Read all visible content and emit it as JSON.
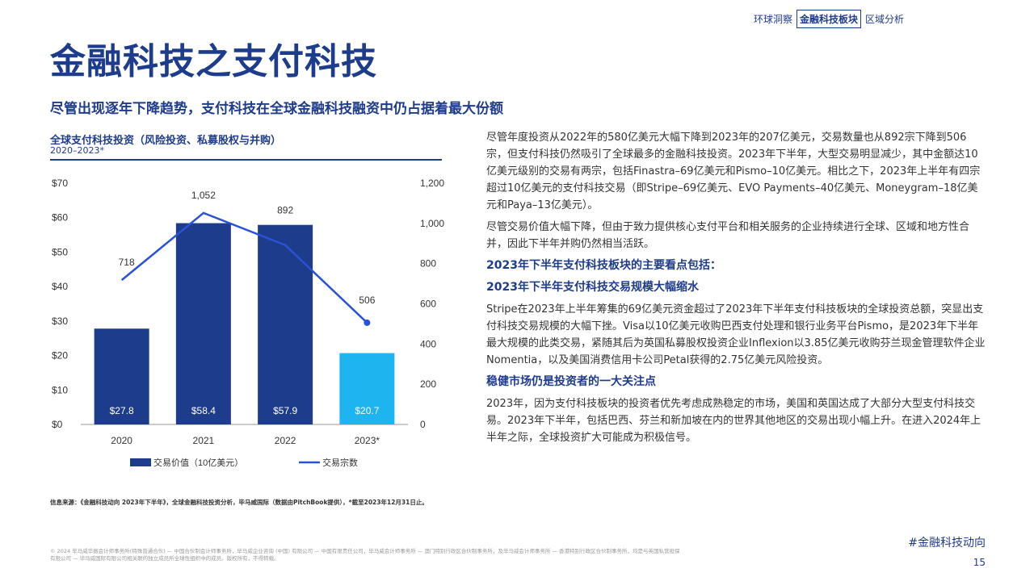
{
  "nav": {
    "items": [
      "环球洞察",
      "金融科技板块",
      "区域分析"
    ],
    "active": 1
  },
  "page_title": "金融科技之支付科技",
  "subtitle": "尽管出现逐年下降趋势，支付科技在全球金融科技融资中仍占据着最大份额",
  "chart_data": {
    "type": "bar",
    "title": "全球支付科技投资（风险投资、私募股权与并购）",
    "subtitle": "2020–2023*",
    "categories": [
      "2020",
      "2021",
      "2022",
      "2023*"
    ],
    "series": [
      {
        "name": "交易价值（10亿美元）",
        "type": "bar",
        "axis": "left",
        "values": [
          27.8,
          58.4,
          57.9,
          20.7
        ],
        "labels": [
          "$27.8",
          "$58.4",
          "$57.9",
          "$20.7"
        ],
        "colors": [
          "#1e3c8c",
          "#1e3c8c",
          "#1e3c8c",
          "#1eb4f0"
        ]
      },
      {
        "name": "交易宗数",
        "type": "line",
        "axis": "right",
        "values": [
          718,
          1052,
          892,
          506
        ],
        "labels": [
          "718",
          "1,052",
          "892",
          "506"
        ],
        "color": "#2a52d6"
      }
    ],
    "left_axis": {
      "ylim": [
        0,
        70
      ],
      "ticks": [
        "$0",
        "$10",
        "$20",
        "$30",
        "$40",
        "$50",
        "$60",
        "$70"
      ]
    },
    "right_axis": {
      "ylim": [
        0,
        1200
      ],
      "ticks": [
        "0",
        "200",
        "400",
        "600",
        "800",
        "1,000",
        "1,200"
      ]
    },
    "legend_position": "bottom"
  },
  "right_text": {
    "p1": "尽管年度投资从2022年的580亿美元大幅下降到2023年的207亿美元，交易数量也从892宗下降到506宗，但支付科技仍然吸引了全球最多的金融科技投资。2023年下半年，大型交易明显减少，其中金额达10亿美元级别的交易有两宗，包括Finastra–69亿美元和Pismo–10亿美元。相比之下，2023年上半年有四宗超过10亿美元的支付科技交易（即Stripe–69亿美元、EVO Payments–40亿美元、Moneygram–18亿美元和Paya–13亿美元）。",
    "p2": "尽管交易价值大幅下降，但由于致力提供核心支付平台和相关服务的企业持续进行全球、区域和地方性合并，因此下半年并购仍然相当活跃。",
    "h1": "2023年下半年支付科技板块的主要看点包括：",
    "h2": "2023年下半年支付科技交易规模大幅缩水",
    "p3": "Stripe在2023年上半年筹集的69亿美元资金超过了2023年下半年支付科技板块的全球投资总额，突显出支付科技交易规模的大幅下挫。Visa以10亿美元收购巴西支付处理和银行业务平台Pismo，是2023年下半年最大规模的此类交易，紧随其后为英国私募股权投资企业Inflexion以3.85亿美元收购芬兰现金管理软件企业Nomentia，以及美国消费信用卡公司Petal获得的2.75亿美元风险投资。",
    "h3": "稳健市场仍是投资者的一大关注点",
    "p4": "2023年，因为支付科技板块的投资者优先考虑成熟稳定的市场，美国和英国达成了大部分大型支付科技交易。2023年下半年，包括巴西、芬兰和新加坡在内的世界其他地区的交易出现小幅上升。在进入2024年上半年之际，全球投资扩大可能成为积极信号。"
  },
  "source": "信息来源：《金融科技动向 2023年下半年》，全球金融科技投资分析，毕马威国际（数据由PitchBook提供），*截至2023年12月31日止。",
  "hashtag": "#金融科技动向",
  "footer": "© 2024 毕马威华振会计师事务所(特殊普通合伙) — 中国合伙制会计师事务所，毕马威企业咨询 (中国) 有限公司 — 中国有限责任公司，毕马威会计师事务所 — 澳门特别行政区合伙制事务所，及毕马威会计师事务所 — 香港特别行政区合伙制事务所，均是与英国私营担保有限公司 — 毕马威国际有限公司相关联的独立成员所全球性组织中的成员。版权所有，不得转载。",
  "page_number": "15"
}
